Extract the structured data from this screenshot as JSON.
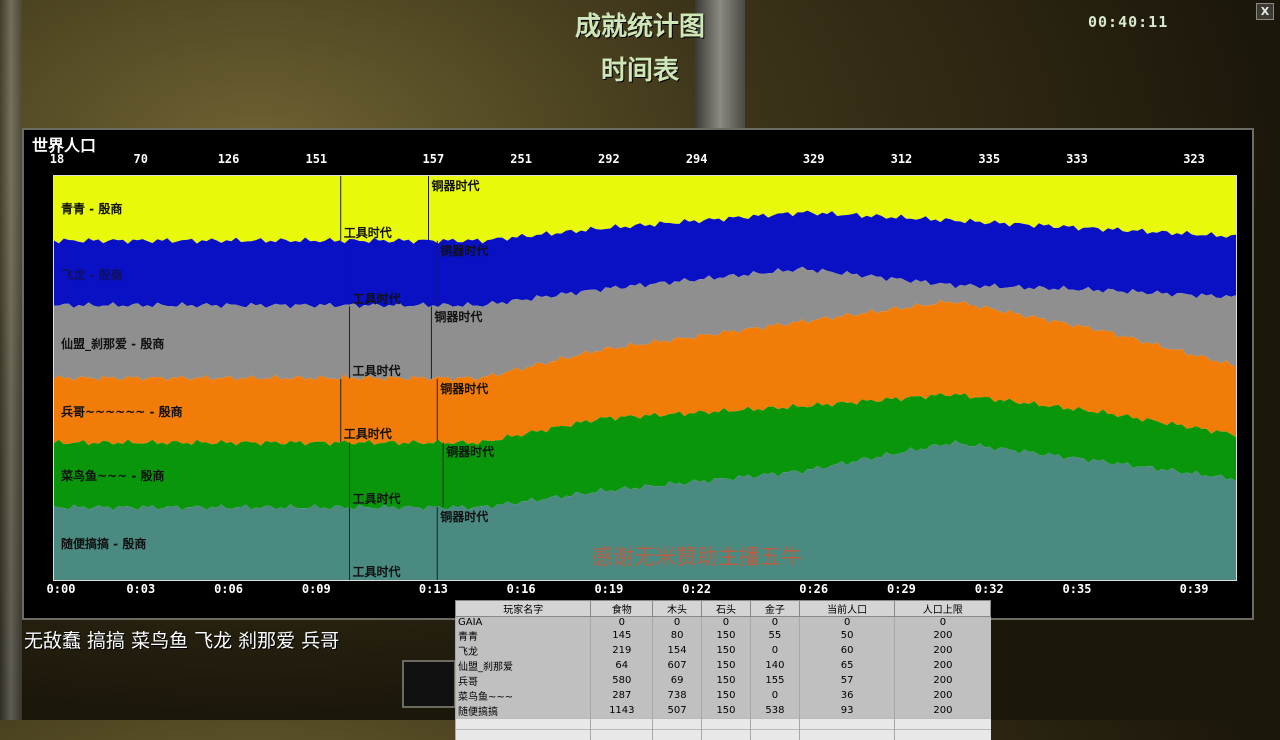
{
  "header": {
    "title": "成就统计图",
    "subtitle": "时间表",
    "clock": "00:40:11",
    "close_label": "X"
  },
  "panel": {
    "title": "世界人口"
  },
  "chart_data": {
    "type": "area",
    "stacked": true,
    "normalized": true,
    "title": "世界人口",
    "top_labels": [
      "18",
      "70",
      "126",
      "151",
      "157",
      "251",
      "292",
      "294",
      "329",
      "312",
      "335",
      "333",
      "323"
    ],
    "x_tick_labels": [
      "0:00",
      "0:03",
      "0:06",
      "0:09",
      "0:13",
      "0:16",
      "0:19",
      "0:22",
      "0:26",
      "0:29",
      "0:32",
      "0:35",
      "0:39"
    ],
    "x_tick_minutes": [
      0,
      3,
      6,
      9,
      13,
      16,
      19,
      22,
      26,
      29,
      32,
      35,
      39
    ],
    "xlim_minutes": [
      0,
      40.4
    ],
    "times_minutes": [
      0,
      14.6,
      18.7,
      25.6,
      30.7,
      35.9,
      40.4
    ],
    "series": [
      {
        "name": "青青 - 殷商",
        "color": "#e8fa0a",
        "shares": [
          0.16,
          0.16,
          0.13,
          0.09,
          0.11,
          0.13,
          0.15
        ],
        "tool_age": 9.8,
        "bronze_age": 12.8
      },
      {
        "name": "飞龙 - 殷商",
        "color": "#0a10c4",
        "shares": [
          0.16,
          0.16,
          0.15,
          0.14,
          0.16,
          0.15,
          0.15
        ],
        "tool_age": 10.1,
        "bronze_age": 13.1
      },
      {
        "name": "仙盟_刹那爱 - 殷商",
        "color": "#8f8f8f",
        "shares": [
          0.18,
          0.18,
          0.15,
          0.13,
          0.04,
          0.1,
          0.17
        ],
        "tool_age": 10.1,
        "bronze_age": 12.9
      },
      {
        "name": "兵哥~~~~~~ - 殷商",
        "color": "#f27c08",
        "shares": [
          0.16,
          0.16,
          0.17,
          0.21,
          0.23,
          0.2,
          0.17
        ],
        "tool_age": 9.8,
        "bronze_age": 13.1
      },
      {
        "name": "菜鸟鱼~~~ - 殷商",
        "color": "#0a960a",
        "shares": [
          0.16,
          0.16,
          0.18,
          0.16,
          0.12,
          0.12,
          0.11
        ],
        "tool_age": 10.1,
        "bronze_age": 13.3
      },
      {
        "name": "随便搞搞 - 殷商",
        "color": "#4a8a80",
        "shares": [
          0.18,
          0.18,
          0.22,
          0.27,
          0.34,
          0.29,
          0.25
        ],
        "tool_age": 10.1,
        "bronze_age": 13.1
      }
    ],
    "age_labels": {
      "tool": "工具时代",
      "bronze": "铜器时代"
    }
  },
  "overlay": {
    "thanks": "感谢无米赞助主播五牛",
    "chat": "无敌蠢 搞搞 菜鸟鱼  飞龙 刹那爱 兵哥"
  },
  "table": {
    "headers": [
      "玩家名字",
      "食物",
      "木头",
      "石头",
      "金子",
      "当前人口",
      "人口上限"
    ],
    "rows": [
      [
        "GAIA",
        "0",
        "0",
        "0",
        "0",
        "0",
        "0"
      ],
      [
        "青青",
        "145",
        "80",
        "150",
        "55",
        "50",
        "200"
      ],
      [
        "飞龙",
        "219",
        "154",
        "150",
        "0",
        "60",
        "200"
      ],
      [
        "仙盟_刹那爱",
        "64",
        "607",
        "150",
        "140",
        "65",
        "200"
      ],
      [
        "兵哥",
        "580",
        "69",
        "150",
        "155",
        "57",
        "200"
      ],
      [
        "菜鸟鱼~~~",
        "287",
        "738",
        "150",
        "0",
        "36",
        "200"
      ],
      [
        "随便搞搞",
        "1143",
        "507",
        "150",
        "538",
        "93",
        "200"
      ]
    ]
  }
}
